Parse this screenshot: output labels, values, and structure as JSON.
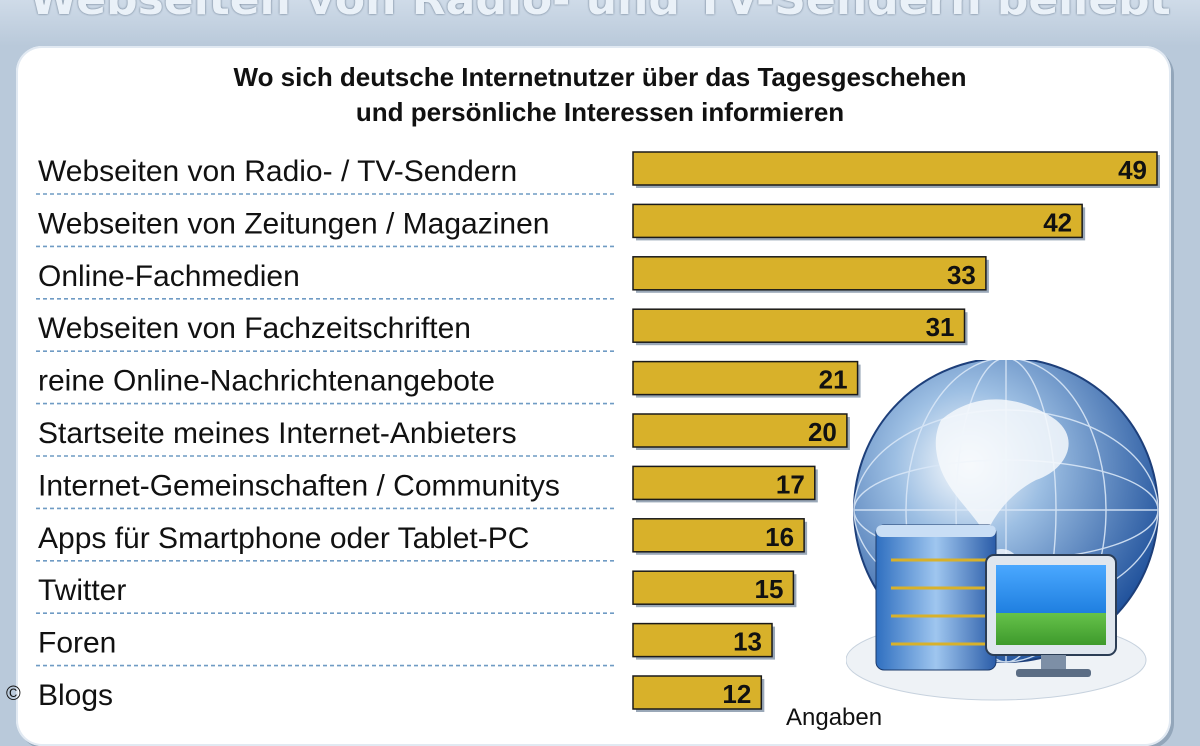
{
  "header": {
    "top_title": "Webseiten von Radio- und TV-Sendern beliebt",
    "subtitle_line1": "Wo sich deutsche Internetnutzer über das Tagesgeschehen",
    "subtitle_line2": "und persönliche Interessen informieren"
  },
  "footer": {
    "copyright": "©",
    "note": "Angaben"
  },
  "colors": {
    "bar": "#d8b12a",
    "bar_border": "#1a1a1a",
    "divider": "#6f9bc4",
    "background": "#b9c9da",
    "panel": "#ffffff"
  },
  "chart_data": {
    "type": "bar",
    "orientation": "horizontal",
    "categories": [
      "Webseiten von Radio- / TV-Sendern",
      "Webseiten von Zeitungen / Magazinen",
      "Online-Fachmedien",
      "Webseiten von Fachzeitschriften",
      "reine Online-Nachrichtenangebote",
      "Startseite meines Internet-Anbieters",
      "Internet-Gemeinschaften / Communitys",
      "Apps für Smartphone oder Tablet-PC",
      "Twitter",
      "Foren",
      "Blogs"
    ],
    "values": [
      49,
      42,
      33,
      31,
      21,
      20,
      17,
      16,
      15,
      13,
      12
    ],
    "data_labels": [
      "49",
      "42",
      "33",
      "31",
      "21",
      "20",
      "17",
      "16",
      "15",
      "13",
      "12"
    ],
    "title": "Wo sich deutsche Internetnutzer über das Tagesgeschehen und persönliche Interessen informieren",
    "xlim": [
      0,
      49
    ],
    "grid": false,
    "legend": "none"
  }
}
